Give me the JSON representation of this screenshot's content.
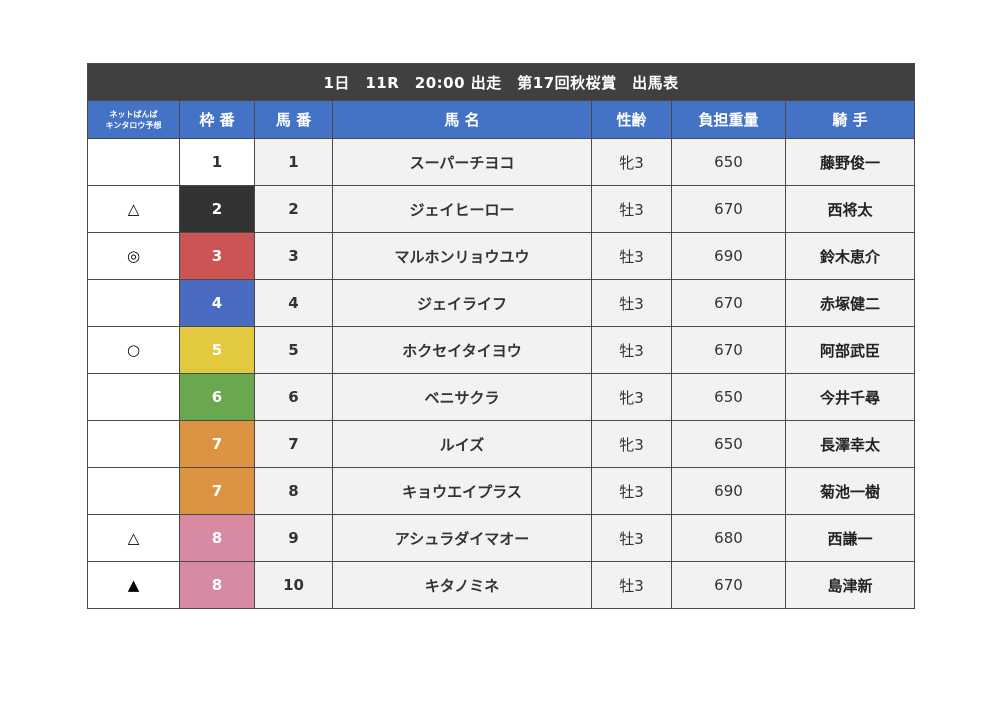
{
  "title": "1日　11R　20:00 出走　第17回秋桜賞　出馬表",
  "headers": {
    "prediction_line1": "ネットばんば",
    "prediction_line2": "キンタロウ予想",
    "frame": "枠 番",
    "horse_no": "馬 番",
    "horse_name": "馬 名",
    "sex_age": "性齢",
    "weight": "負担重量",
    "jockey": "騎 手"
  },
  "colors": {
    "title_bg": "#404040",
    "header_bg": "#4472c4",
    "row_bg": "#f2f2f2",
    "frame_1": "#ffffff",
    "frame_2": "#333333",
    "frame_3": "#cc5454",
    "frame_4": "#4a6cc0",
    "frame_5": "#e3c93d",
    "frame_6": "#6aa84f",
    "frame_7": "#dc9443",
    "frame_8": "#d98aa3"
  },
  "rows": [
    {
      "mark": "",
      "frame": "1",
      "horse_no": "1",
      "name": "スーパーチヨコ",
      "sex_age": "牝3",
      "weight": "650",
      "jockey": "藤野俊一"
    },
    {
      "mark": "△",
      "frame": "2",
      "horse_no": "2",
      "name": "ジェイヒーロー",
      "sex_age": "牡3",
      "weight": "670",
      "jockey": "西将太"
    },
    {
      "mark": "◎",
      "frame": "3",
      "horse_no": "3",
      "name": "マルホンリョウユウ",
      "sex_age": "牡3",
      "weight": "690",
      "jockey": "鈴木恵介"
    },
    {
      "mark": "",
      "frame": "4",
      "horse_no": "4",
      "name": "ジェイライフ",
      "sex_age": "牡3",
      "weight": "670",
      "jockey": "赤塚健二"
    },
    {
      "mark": "○",
      "frame": "5",
      "horse_no": "5",
      "name": "ホクセイタイヨウ",
      "sex_age": "牡3",
      "weight": "670",
      "jockey": "阿部武臣"
    },
    {
      "mark": "",
      "frame": "6",
      "horse_no": "6",
      "name": "ベニサクラ",
      "sex_age": "牝3",
      "weight": "650",
      "jockey": "今井千尋"
    },
    {
      "mark": "",
      "frame": "7",
      "horse_no": "7",
      "name": "ルイズ",
      "sex_age": "牝3",
      "weight": "650",
      "jockey": "長澤幸太"
    },
    {
      "mark": "",
      "frame": "7",
      "horse_no": "8",
      "name": "キョウエイプラス",
      "sex_age": "牡3",
      "weight": "690",
      "jockey": "菊池一樹"
    },
    {
      "mark": "△",
      "frame": "8",
      "horse_no": "9",
      "name": "アシュラダイマオー",
      "sex_age": "牡3",
      "weight": "680",
      "jockey": "西謙一"
    },
    {
      "mark": "▲",
      "frame": "8",
      "horse_no": "10",
      "name": "キタノミネ",
      "sex_age": "牡3",
      "weight": "670",
      "jockey": "島津新"
    }
  ]
}
